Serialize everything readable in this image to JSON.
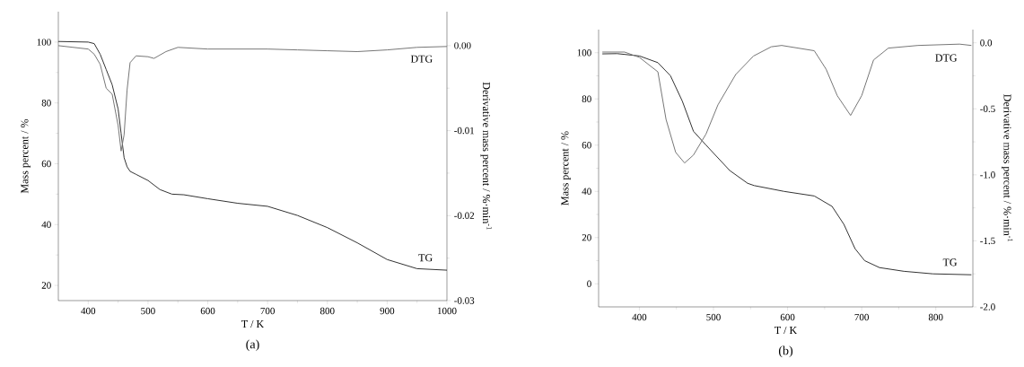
{
  "chart_data": [
    {
      "type": "line",
      "title": "(a)",
      "xlabel": "T / K",
      "ylabel": "Mass percent / %",
      "y2label": "Derivative mass percent / %·min$^{-1}$",
      "xlim": [
        350,
        1000
      ],
      "ylim": [
        15,
        110
      ],
      "y2lim": [
        -0.03,
        0.004
      ],
      "xticks": [
        400,
        500,
        600,
        700,
        800,
        900,
        1000
      ],
      "yticks": [
        20,
        40,
        60,
        80,
        100
      ],
      "y2ticks": [
        {
          "value": 0,
          "label": "0.00"
        },
        {
          "value": -0.01,
          "label": "-0.01"
        },
        {
          "value": -0.02,
          "label": "-0.02"
        },
        {
          "value": -0.03,
          "label": "-0.03"
        }
      ],
      "series": [
        {
          "name": "TG",
          "color": "#333333",
          "x": [
            350,
            400,
            410,
            420,
            430,
            440,
            450,
            455,
            460,
            465,
            470,
            480,
            500,
            520,
            540,
            560,
            600,
            650,
            700,
            750,
            800,
            850,
            900,
            950,
            1000
          ],
          "values": [
            100.2,
            100,
            99.5,
            96,
            91,
            86,
            78,
            70,
            62,
            59,
            57.5,
            56.5,
            54.5,
            51.5,
            50,
            49.8,
            48.5,
            47,
            46,
            43,
            39,
            34,
            28.5,
            25.5,
            25
          ]
        },
        {
          "name": "DTG",
          "color": "#777777",
          "axis": "y2",
          "x": [
            350,
            400,
            410,
            420,
            430,
            440,
            450,
            455,
            460,
            465,
            470,
            480,
            500,
            510,
            530,
            550,
            600,
            700,
            750,
            800,
            850,
            900,
            950,
            1000
          ],
          "values": [
            0.0,
            -0.0004,
            -0.001,
            -0.0022,
            -0.005,
            -0.0057,
            -0.0094,
            -0.0124,
            -0.0105,
            -0.0052,
            -0.002,
            -0.0012,
            -0.0013,
            -0.0015,
            -0.0007,
            -0.0002,
            -0.0004,
            -0.0004,
            -0.0005,
            -0.0006,
            -0.0007,
            -0.0005,
            -0.0002,
            -0.0001
          ]
        }
      ]
    },
    {
      "type": "line",
      "title": "(b)",
      "xlabel": "T / K",
      "ylabel": "Mass percent / %",
      "y2label": "Derivative mass percent / %·min$^{-1}$",
      "xlim": [
        345,
        850
      ],
      "ylim": [
        -10,
        110
      ],
      "y2lim": [
        -2.0,
        0.1
      ],
      "xticks": [
        400,
        500,
        600,
        700,
        800
      ],
      "yticks": [
        0,
        20,
        40,
        60,
        80,
        100
      ],
      "y2ticks": [
        {
          "value": 0,
          "label": "0.0"
        },
        {
          "value": -0.5,
          "label": "-0.5"
        },
        {
          "value": -1.0,
          "label": "-1.0"
        },
        {
          "value": -1.5,
          "label": "-1.5"
        },
        {
          "value": -2.0,
          "label": "-2.0"
        }
      ],
      "series": [
        {
          "name": "TG",
          "color": "#333333",
          "x": [
            350,
            370,
            400,
            425,
            442,
            458,
            473,
            490,
            522,
            546,
            555,
            595,
            636,
            660,
            676,
            691,
            704,
            724,
            757,
            796,
            848
          ],
          "values": [
            99.5,
            99.6,
            98.6,
            95.7,
            90,
            79,
            66,
            60,
            49,
            43.5,
            42.5,
            40,
            38,
            33.5,
            25.7,
            15.2,
            10,
            7,
            5.4,
            4.3,
            3.9
          ]
        },
        {
          "name": "DTG",
          "color": "#777777",
          "axis": "y2",
          "x": [
            350,
            380,
            400,
            425,
            436,
            449,
            461,
            473,
            490,
            506,
            530,
            554,
            578,
            592,
            636,
            652,
            667,
            685,
            700,
            716,
            736,
            776,
            832,
            848
          ],
          "values": [
            -0.07,
            -0.07,
            -0.11,
            -0.22,
            -0.58,
            -0.83,
            -0.91,
            -0.85,
            -0.69,
            -0.47,
            -0.24,
            -0.1,
            -0.03,
            -0.02,
            -0.06,
            -0.2,
            -0.4,
            -0.55,
            -0.4,
            -0.13,
            -0.04,
            -0.02,
            -0.01,
            -0.02
          ]
        }
      ]
    }
  ]
}
